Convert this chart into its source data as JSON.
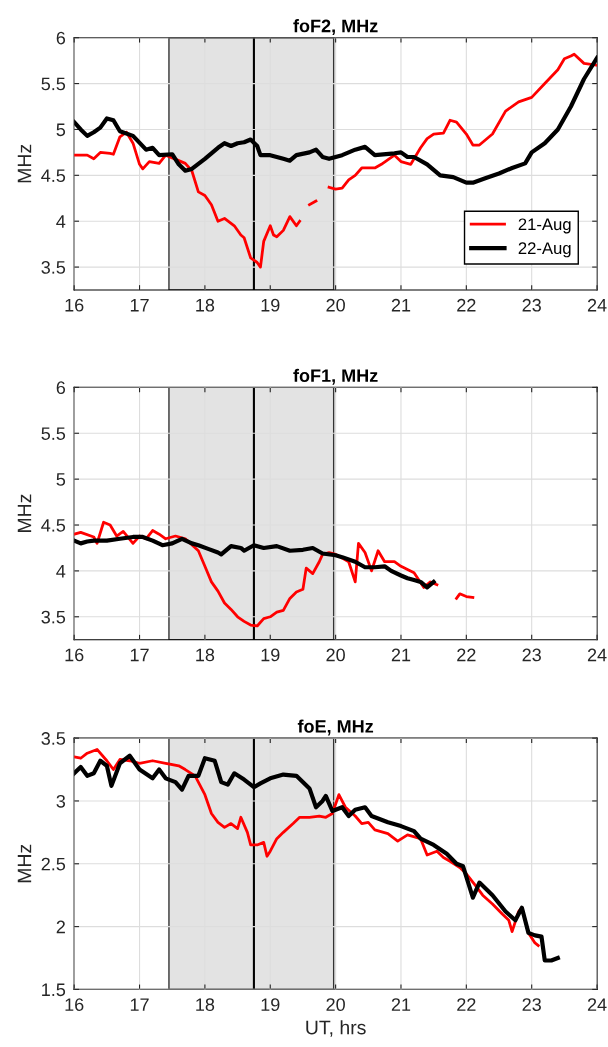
{
  "chart_data": [
    {
      "type": "line",
      "title": "foF2, MHz",
      "ylabel": "MHz",
      "xlim": [
        16,
        24
      ],
      "xticks": [
        16,
        17,
        18,
        19,
        20,
        21,
        22,
        23,
        24
      ],
      "ylim": [
        3.25,
        6
      ],
      "yticks": [
        3.5,
        4,
        4.5,
        5,
        5.5,
        6
      ],
      "grid": true,
      "legend": "bottom right",
      "bands": [
        {
          "axis": "x",
          "from": 17.45,
          "to": 19.97,
          "color": "#e3e3e3"
        }
      ],
      "ref_lines": [
        {
          "axis": "x",
          "value": 18.75,
          "color": "#000000"
        }
      ],
      "series": [
        {
          "name": "21-Aug",
          "color": "#ff0000",
          "x": [
            16.0,
            16.2,
            16.3,
            16.4,
            16.55,
            16.6,
            16.7,
            16.8,
            16.9,
            17.0,
            17.05,
            17.15,
            17.3,
            17.4,
            17.6,
            17.7,
            17.8,
            17.9,
            18.0,
            18.1,
            18.2,
            18.3,
            18.45,
            18.55,
            18.6,
            18.7,
            18.8,
            18.85,
            18.9,
            19.0,
            19.05,
            19.1,
            19.2,
            19.3,
            19.4,
            19.45,
            19.52,
            19.6,
            19.7,
            19.8,
            19.9,
            20.0,
            20.1,
            20.2,
            20.3,
            20.4,
            20.6,
            20.7,
            20.9,
            21.0,
            21.15,
            21.3,
            21.4,
            21.5,
            21.65,
            21.75,
            21.85,
            22.0,
            22.1,
            22.2,
            22.4,
            22.6,
            22.8,
            23.0,
            23.2,
            23.4,
            23.5,
            23.6,
            23.65,
            23.8,
            24.0
          ],
          "values": [
            4.72,
            4.72,
            4.68,
            4.75,
            4.74,
            4.73,
            4.92,
            4.97,
            4.85,
            4.62,
            4.57,
            4.65,
            4.63,
            4.72,
            4.66,
            4.63,
            4.55,
            4.32,
            4.28,
            4.18,
            4.0,
            4.03,
            3.95,
            3.85,
            3.82,
            3.6,
            3.55,
            3.5,
            3.78,
            3.95,
            3.85,
            3.83,
            3.9,
            4.05,
            3.95,
            4.0,
            null,
            4.18,
            4.22,
            null,
            4.37,
            4.35,
            4.36,
            4.45,
            4.5,
            4.58,
            4.58,
            4.62,
            4.72,
            4.65,
            4.62,
            4.8,
            4.9,
            4.95,
            4.96,
            5.1,
            5.08,
            4.95,
            4.83,
            4.83,
            4.95,
            5.2,
            5.3,
            5.35,
            5.5,
            5.65,
            5.77,
            5.8,
            5.82,
            5.72,
            5.7
          ]
        },
        {
          "name": "22-Aug",
          "color": "#000000",
          "x": [
            16.0,
            16.1,
            16.2,
            16.3,
            16.4,
            16.5,
            16.6,
            16.7,
            16.9,
            17.1,
            17.2,
            17.3,
            17.5,
            17.6,
            17.7,
            17.8,
            18.0,
            18.2,
            18.3,
            18.4,
            18.5,
            18.6,
            18.7,
            18.8,
            18.85,
            19.0,
            19.2,
            19.3,
            19.4,
            19.6,
            19.7,
            19.8,
            19.9,
            20.1,
            20.3,
            20.45,
            20.6,
            20.9,
            21.0,
            21.1,
            21.2,
            21.4,
            21.6,
            21.8,
            22.0,
            22.1,
            22.3,
            22.5,
            22.7,
            22.9,
            23.0,
            23.2,
            23.4,
            23.6,
            23.8,
            24.0
          ],
          "values": [
            5.08,
            5.0,
            4.93,
            4.97,
            5.02,
            5.12,
            5.1,
            4.98,
            4.93,
            4.78,
            4.8,
            4.72,
            4.73,
            4.62,
            4.55,
            4.57,
            4.68,
            4.8,
            4.85,
            4.82,
            4.85,
            4.86,
            4.89,
            4.82,
            4.72,
            4.72,
            4.68,
            4.66,
            4.72,
            4.75,
            4.78,
            4.7,
            4.68,
            4.72,
            4.78,
            4.81,
            4.72,
            4.74,
            4.75,
            4.7,
            4.7,
            4.62,
            4.5,
            4.48,
            4.42,
            4.42,
            4.47,
            4.52,
            4.58,
            4.63,
            4.75,
            4.85,
            5.0,
            5.25,
            5.55,
            5.78
          ]
        }
      ]
    },
    {
      "type": "line",
      "title": "foF1, MHz",
      "ylabel": "MHz",
      "xlim": [
        16,
        24
      ],
      "xticks": [
        16,
        17,
        18,
        19,
        20,
        21,
        22,
        23,
        24
      ],
      "ylim": [
        3.25,
        6
      ],
      "yticks": [
        3.5,
        4,
        4.5,
        5,
        5.5,
        6
      ],
      "grid": true,
      "bands": [
        {
          "axis": "x",
          "from": 17.45,
          "to": 19.97,
          "color": "#e3e3e3"
        }
      ],
      "ref_lines": [
        {
          "axis": "x",
          "value": 18.75,
          "color": "#000000"
        }
      ],
      "series": [
        {
          "color": "#ff0000",
          "x": [
            16.0,
            16.1,
            16.3,
            16.35,
            16.45,
            16.55,
            16.65,
            16.75,
            16.9,
            17.0,
            17.1,
            17.2,
            17.3,
            17.4,
            17.55,
            17.7,
            17.9,
            18.0,
            18.1,
            18.2,
            18.3,
            18.4,
            18.5,
            18.6,
            18.7,
            18.8,
            18.9,
            19.0,
            19.1,
            19.2,
            19.3,
            19.4,
            19.5,
            19.55,
            19.65,
            19.75,
            19.8,
            19.9,
            20.0,
            20.2,
            20.3,
            20.35,
            20.45,
            20.55,
            20.65,
            20.75,
            20.9,
            21.0,
            21.2,
            21.35,
            21.45,
            21.55
          ],
          "values": [
            4.4,
            4.42,
            4.37,
            4.3,
            4.53,
            4.5,
            4.38,
            4.43,
            4.3,
            4.38,
            4.35,
            4.44,
            4.4,
            4.35,
            4.38,
            4.35,
            4.22,
            4.05,
            3.88,
            3.78,
            3.65,
            3.58,
            3.5,
            3.45,
            3.41,
            3.4,
            3.48,
            3.5,
            3.55,
            3.57,
            3.7,
            3.77,
            3.8,
            4.03,
            3.97,
            4.1,
            4.18,
            4.2,
            4.18,
            4.1,
            3.88,
            4.3,
            4.2,
            4.0,
            4.22,
            4.1,
            4.1,
            4.05,
            3.98,
            3.82,
            3.88,
            3.85
          ]
        },
        {
          "color": "#ff0000",
          "x": [
            21.85,
            21.9,
            22.0,
            22.1
          ],
          "values": [
            3.7,
            3.75,
            3.72,
            3.71
          ]
        },
        {
          "color": "#000000",
          "x": [
            16.0,
            16.1,
            16.2,
            16.3,
            16.5,
            16.7,
            16.9,
            17.05,
            17.2,
            17.35,
            17.5,
            17.65,
            17.8,
            17.9,
            18.05,
            18.2,
            18.25,
            18.4,
            18.55,
            18.6,
            18.75,
            18.9,
            19.1,
            19.3,
            19.5,
            19.65,
            19.8,
            20.0,
            20.1,
            20.3,
            20.45,
            20.6,
            20.75,
            20.85,
            21.0,
            21.1,
            21.2,
            21.3,
            21.35,
            21.4,
            21.45,
            21.5
          ],
          "values": [
            4.33,
            4.3,
            4.32,
            4.33,
            4.33,
            4.35,
            4.37,
            4.37,
            4.33,
            4.28,
            4.3,
            4.35,
            4.3,
            4.28,
            4.24,
            4.2,
            4.18,
            4.27,
            4.25,
            4.22,
            4.28,
            4.25,
            4.27,
            4.22,
            4.23,
            4.25,
            4.19,
            4.17,
            4.15,
            4.1,
            4.04,
            4.04,
            4.05,
            4.0,
            3.95,
            3.92,
            3.9,
            3.88,
            3.85,
            3.82,
            3.85,
            3.88
          ]
        }
      ]
    },
    {
      "type": "line",
      "title": "foE, MHz",
      "xlabel": "UT, hrs",
      "ylabel": "MHz",
      "xlim": [
        16,
        24
      ],
      "xticks": [
        16,
        17,
        18,
        19,
        20,
        21,
        22,
        23,
        24
      ],
      "ylim": [
        1.5,
        3.5
      ],
      "yticks": [
        1.5,
        2,
        2.5,
        3,
        3.5
      ],
      "grid": true,
      "bands": [
        {
          "axis": "x",
          "from": 17.45,
          "to": 19.97,
          "color": "#e3e3e3"
        }
      ],
      "ref_lines": [
        {
          "axis": "x",
          "value": 18.75,
          "color": "#000000"
        }
      ],
      "series": [
        {
          "color": "#ff0000",
          "x": [
            16.0,
            16.1,
            16.2,
            16.35,
            16.5,
            16.6,
            16.7,
            16.85,
            17.0,
            17.2,
            17.4,
            17.6,
            17.7,
            17.85,
            18.0,
            18.1,
            18.2,
            18.3,
            18.4,
            18.5,
            18.55,
            18.65,
            18.7,
            18.8,
            18.9,
            18.95,
            19.0,
            19.1,
            19.2,
            19.35,
            19.45,
            19.6,
            19.75,
            19.85,
            19.95,
            20.05,
            20.15,
            20.3,
            20.4,
            20.5,
            20.6,
            20.8,
            20.95,
            21.1,
            21.3,
            21.4,
            21.55,
            21.65,
            21.75,
            21.9,
            22.0,
            22.15,
            22.25,
            22.4,
            22.55,
            22.65,
            22.7,
            22.8,
            22.85,
            22.95,
            23.05,
            23.1
          ],
          "values": [
            3.35,
            3.34,
            3.38,
            3.41,
            3.32,
            3.25,
            3.33,
            3.32,
            3.3,
            3.32,
            3.3,
            3.28,
            3.25,
            3.2,
            3.05,
            2.9,
            2.83,
            2.79,
            2.82,
            2.78,
            2.87,
            2.75,
            2.65,
            2.65,
            2.67,
            2.56,
            2.6,
            2.7,
            2.75,
            2.82,
            2.87,
            2.87,
            2.88,
            2.87,
            2.9,
            3.05,
            2.95,
            2.88,
            2.82,
            2.83,
            2.77,
            2.74,
            2.68,
            2.73,
            2.7,
            2.57,
            2.6,
            2.55,
            2.52,
            2.47,
            2.42,
            2.32,
            2.25,
            2.18,
            2.1,
            2.05,
            1.96,
            2.12,
            2.15,
            1.95,
            1.87,
            1.85
          ]
        },
        {
          "color": "#000000",
          "x": [
            16.0,
            16.1,
            16.2,
            16.3,
            16.4,
            16.5,
            16.57,
            16.7,
            16.85,
            17.0,
            17.2,
            17.3,
            17.4,
            17.55,
            17.65,
            17.75,
            17.9,
            18.0,
            18.15,
            18.25,
            18.35,
            18.45,
            18.6,
            18.75,
            18.85,
            19.0,
            19.2,
            19.4,
            19.6,
            19.7,
            19.8,
            19.85,
            19.95,
            20.1,
            20.2,
            20.3,
            20.45,
            20.55,
            20.8,
            21.0,
            21.2,
            21.3,
            21.5,
            21.7,
            21.85,
            21.95,
            22.1,
            22.2,
            22.4,
            22.6,
            22.75,
            22.85,
            22.95,
            23.05,
            23.15,
            23.2,
            23.3,
            23.4
          ],
          "values": [
            3.22,
            3.27,
            3.2,
            3.22,
            3.32,
            3.28,
            3.12,
            3.3,
            3.36,
            3.25,
            3.18,
            3.25,
            3.18,
            3.15,
            3.09,
            3.2,
            3.2,
            3.34,
            3.32,
            3.15,
            3.13,
            3.22,
            3.17,
            3.11,
            3.14,
            3.18,
            3.21,
            3.2,
            3.1,
            2.95,
            3.0,
            3.04,
            2.92,
            2.95,
            2.88,
            2.93,
            2.95,
            2.88,
            2.83,
            2.8,
            2.76,
            2.7,
            2.65,
            2.58,
            2.5,
            2.48,
            2.23,
            2.35,
            2.25,
            2.12,
            2.05,
            2.15,
            1.95,
            1.93,
            1.92,
            1.73,
            1.73,
            1.75
          ]
        }
      ]
    }
  ]
}
